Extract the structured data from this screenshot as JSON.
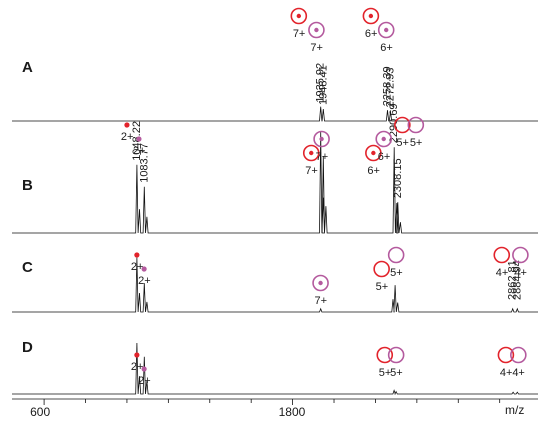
{
  "chart_data": {
    "type": "line",
    "xlabel": "m/z",
    "ylabel": "",
    "xlim": [
      445,
      2985
    ],
    "x_ticks": [
      {
        "value": 600,
        "label": "600"
      },
      {
        "value": 1800,
        "label": "1800"
      }
    ],
    "colors": {
      "red": "#e2232b",
      "purple": "#b45a9e",
      "trace": "#111111"
    },
    "panels": [
      {
        "id": "A",
        "label": "A",
        "peaks": [
          {
            "mz": 1935.92,
            "label": "1935.92",
            "height": 0.12
          },
          {
            "mz": 1948.41,
            "label": "1948.41",
            "height": 0.1
          },
          {
            "mz": 2258.39,
            "label": "2258.39",
            "height": 0.09
          },
          {
            "mz": 2272.93,
            "label": "2272.93",
            "height": 0.08
          }
        ],
        "annotations": [
          {
            "mz": 1830,
            "tier": 0,
            "icon": "red-dot",
            "charge": "7+"
          },
          {
            "mz": 1915,
            "tier": 1,
            "icon": "purple-dot",
            "charge": "7+"
          },
          {
            "mz": 2178,
            "tier": 0,
            "icon": "red-dot",
            "charge": "6+"
          },
          {
            "mz": 2252,
            "tier": 1,
            "icon": "purple-dot",
            "charge": "6+"
          }
        ]
      },
      {
        "id": "B",
        "label": "B",
        "peaks": [
          {
            "mz": 1048.22,
            "label": "1048.22",
            "height": 0.62
          },
          {
            "mz": 1083.77,
            "label": "1083.77",
            "height": 0.42
          },
          {
            "mz": 1935.92,
            "label": "",
            "height": 0.92
          },
          {
            "mz": 1948.41,
            "label": "",
            "height": 0.7
          },
          {
            "mz": 2290.69,
            "label": "2290.69",
            "height": 0.78
          },
          {
            "mz": 2308.15,
            "label": "2308.15",
            "height": 0.28
          }
        ],
        "annotations": [
          {
            "mz": 1000,
            "tier": 0,
            "icon": "red-dot-small",
            "charge": "2+"
          },
          {
            "mz": 1058,
            "tier": 1,
            "icon": "purple-dot-small",
            "charge": "2+"
          },
          {
            "mz": 1890,
            "tier": 2,
            "icon": "red-dot",
            "charge": "7+"
          },
          {
            "mz": 1940,
            "tier": 1,
            "icon": "purple-dot",
            "charge": "7+"
          },
          {
            "mz": 2190,
            "tier": 2,
            "icon": "red-dot",
            "charge": "6+"
          },
          {
            "mz": 2240,
            "tier": 1,
            "icon": "purple-dot",
            "charge": "6+"
          },
          {
            "mz": 2330,
            "tier": 0,
            "icon": "red-ring",
            "charge": "5+"
          },
          {
            "mz": 2395,
            "tier": 0,
            "icon": "purple-ring",
            "charge": "5+"
          }
        ]
      },
      {
        "id": "C",
        "label": "C",
        "peaks": [
          {
            "mz": 1048.22,
            "label": "",
            "height": 0.85
          },
          {
            "mz": 1083.77,
            "label": "",
            "height": 0.45
          },
          {
            "mz": 1935.92,
            "label": "",
            "height": 0.05
          },
          {
            "mz": 2285.0,
            "label": "",
            "height": 0.2
          },
          {
            "mz": 2295.0,
            "label": "",
            "height": 0.42
          },
          {
            "mz": 2862.81,
            "label": "2862.81",
            "height": 0.05
          },
          {
            "mz": 2884.94,
            "label": "2884.94",
            "height": 0.05
          }
        ],
        "annotations": [
          {
            "mz": 1048,
            "tier": 0,
            "icon": "red-dot-small",
            "charge": "2+"
          },
          {
            "mz": 1083,
            "tier": 1,
            "icon": "purple-dot-small",
            "charge": "2+"
          },
          {
            "mz": 1935,
            "tier": 2,
            "icon": "purple-dot",
            "charge": "7+"
          },
          {
            "mz": 2230,
            "tier": 1,
            "icon": "red-ring",
            "charge": "5+"
          },
          {
            "mz": 2300,
            "tier": 0,
            "icon": "purple-ring",
            "charge": "5+"
          },
          {
            "mz": 2810,
            "tier": 0,
            "icon": "red-ring",
            "charge": "4+"
          },
          {
            "mz": 2900,
            "tier": 0,
            "icon": "purple-ring",
            "charge": "4+"
          }
        ]
      },
      {
        "id": "D",
        "label": "D",
        "peaks": [
          {
            "mz": 1048.22,
            "label": "",
            "height": 0.85
          },
          {
            "mz": 1083.77,
            "label": "",
            "height": 0.62
          },
          {
            "mz": 2290.0,
            "label": "",
            "height": 0.06
          },
          {
            "mz": 2300.0,
            "label": "",
            "height": 0.04
          },
          {
            "mz": 2865.0,
            "label": "",
            "height": 0.03
          },
          {
            "mz": 2885.0,
            "label": "",
            "height": 0.03
          }
        ],
        "annotations": [
          {
            "mz": 1048,
            "tier": 0,
            "icon": "red-dot-small",
            "charge": "2+"
          },
          {
            "mz": 1083,
            "tier": 1,
            "icon": "purple-dot-small",
            "charge": "2+"
          },
          {
            "mz": 2245,
            "tier": 0,
            "icon": "red-ring",
            "charge": "5+"
          },
          {
            "mz": 2300,
            "tier": 0,
            "icon": "purple-ring",
            "charge": "5+"
          },
          {
            "mz": 2830,
            "tier": 0,
            "icon": "red-ring",
            "charge": "4+"
          },
          {
            "mz": 2890,
            "tier": 0,
            "icon": "purple-ring",
            "charge": "4+"
          }
        ]
      }
    ]
  }
}
